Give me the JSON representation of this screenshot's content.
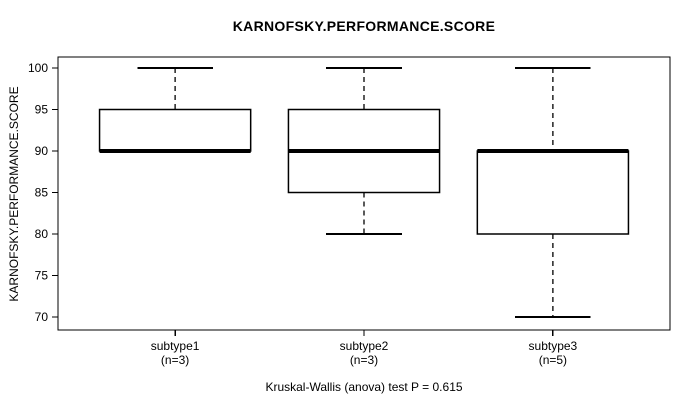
{
  "title": "KARNOFSKY.PERFORMANCE.SCORE",
  "chart_data": {
    "type": "boxplot",
    "title": "KARNOFSKY.PERFORMANCE.SCORE",
    "ylabel": "KARNOFSKY.PERFORMANCE.SCORE",
    "xlabel": "",
    "caption": "Kruskal-Wallis (anova) test P = 0.615",
    "yticks": [
      70,
      75,
      80,
      85,
      90,
      95,
      100
    ],
    "ylim": [
      68.8,
      101.2
    ],
    "grid": false,
    "legend": "none",
    "box_color": "#000000",
    "fill_color": "#ffffff",
    "groups": [
      {
        "label": "subtype1",
        "sublabel": "(n=3)",
        "min": 90,
        "q1": 90,
        "median": 90,
        "q3": 95,
        "max": 100
      },
      {
        "label": "subtype2",
        "sublabel": "(n=3)",
        "min": 80,
        "q1": 85,
        "median": 90,
        "q3": 95,
        "max": 100
      },
      {
        "label": "subtype3",
        "sublabel": "(n=5)",
        "min": 70,
        "q1": 80,
        "median": 90,
        "q3": 90,
        "max": 100
      }
    ]
  }
}
